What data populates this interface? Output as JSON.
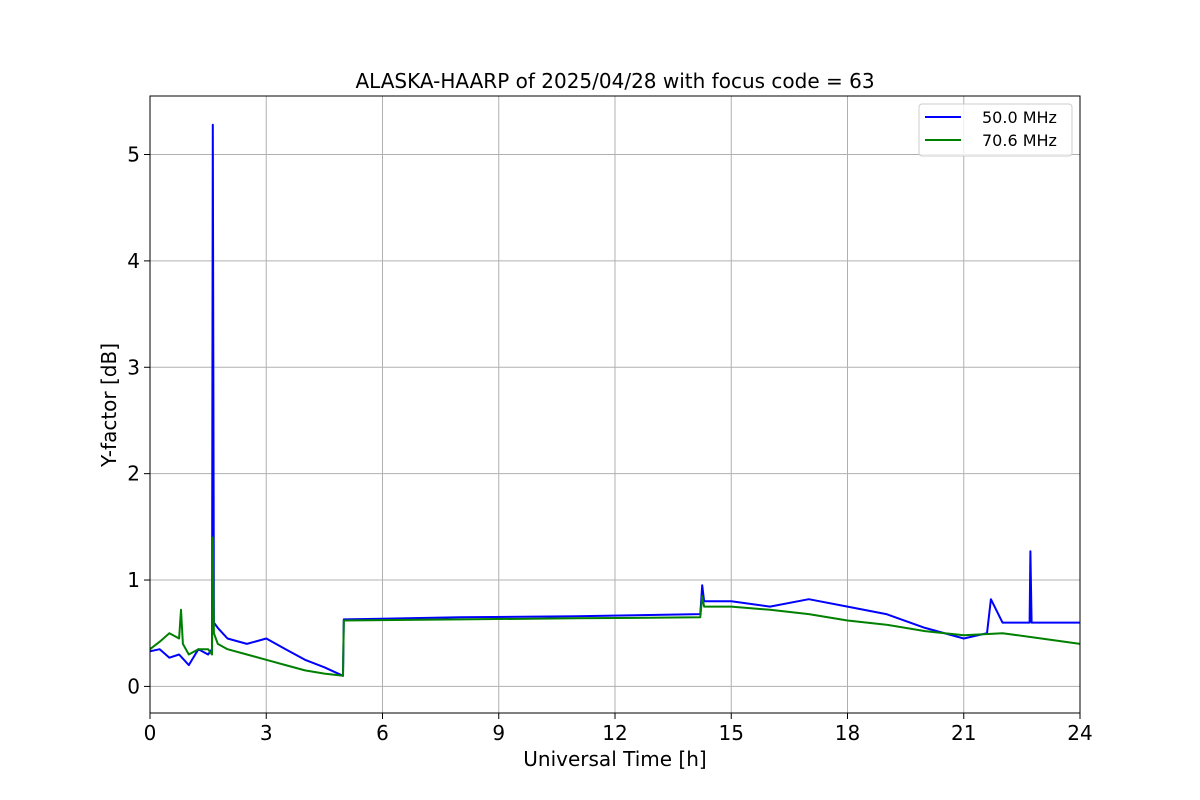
{
  "chart_data": {
    "type": "line",
    "title": "ALASKA-HAARP of 2025/04/28 with focus code = 63",
    "xlabel": "Universal Time [h]",
    "ylabel": "Y-factor [dB]",
    "xlim": [
      0,
      24
    ],
    "ylim": [
      -0.25,
      5.55
    ],
    "xticks": [
      0,
      3,
      6,
      9,
      12,
      15,
      18,
      21,
      24
    ],
    "xtick_labels": [
      "0",
      "3",
      "6",
      "9",
      "12",
      "15",
      "18",
      "21",
      "24"
    ],
    "yticks": [
      0,
      1,
      2,
      3,
      4,
      5
    ],
    "ytick_labels": [
      "0",
      "1",
      "2",
      "3",
      "4",
      "5"
    ],
    "grid": true,
    "legend_position": "top-right",
    "series": [
      {
        "name": "50.0 MHz",
        "color": "#0000ff",
        "x": [
          0,
          0.25,
          0.5,
          0.75,
          1.0,
          1.25,
          1.5,
          1.6,
          1.62,
          1.65,
          1.75,
          2.0,
          2.5,
          3.0,
          3.5,
          4.0,
          4.5,
          4.98,
          5.0,
          8,
          11,
          14.2,
          14.25,
          14.3,
          15,
          16,
          17,
          18,
          19,
          20,
          21,
          21.6,
          21.7,
          22,
          22.7,
          22.72,
          22.75,
          23.5,
          24
        ],
        "y": [
          0.33,
          0.35,
          0.27,
          0.3,
          0.2,
          0.35,
          0.3,
          0.35,
          5.28,
          0.6,
          0.55,
          0.45,
          0.4,
          0.45,
          0.35,
          0.25,
          0.18,
          0.1,
          0.63,
          0.65,
          0.66,
          0.68,
          0.95,
          0.8,
          0.8,
          0.75,
          0.82,
          0.75,
          0.68,
          0.55,
          0.45,
          0.5,
          0.82,
          0.6,
          0.6,
          1.27,
          0.6,
          0.6,
          0.6
        ]
      },
      {
        "name": "70.6 MHz",
        "color": "#008000",
        "x": [
          0,
          0.25,
          0.5,
          0.75,
          0.8,
          0.85,
          1.0,
          1.25,
          1.5,
          1.6,
          1.62,
          1.65,
          1.75,
          2.0,
          2.5,
          3.0,
          3.5,
          4.0,
          4.5,
          4.98,
          5.0,
          8,
          11,
          14.2,
          14.25,
          14.3,
          15,
          16,
          17,
          18,
          19,
          20,
          21,
          22,
          23,
          24
        ],
        "y": [
          0.35,
          0.42,
          0.5,
          0.45,
          0.72,
          0.4,
          0.3,
          0.35,
          0.35,
          0.3,
          1.4,
          0.5,
          0.4,
          0.35,
          0.3,
          0.25,
          0.2,
          0.15,
          0.12,
          0.1,
          0.62,
          0.63,
          0.64,
          0.65,
          0.85,
          0.75,
          0.75,
          0.72,
          0.68,
          0.62,
          0.58,
          0.52,
          0.48,
          0.5,
          0.45,
          0.4
        ]
      }
    ]
  }
}
